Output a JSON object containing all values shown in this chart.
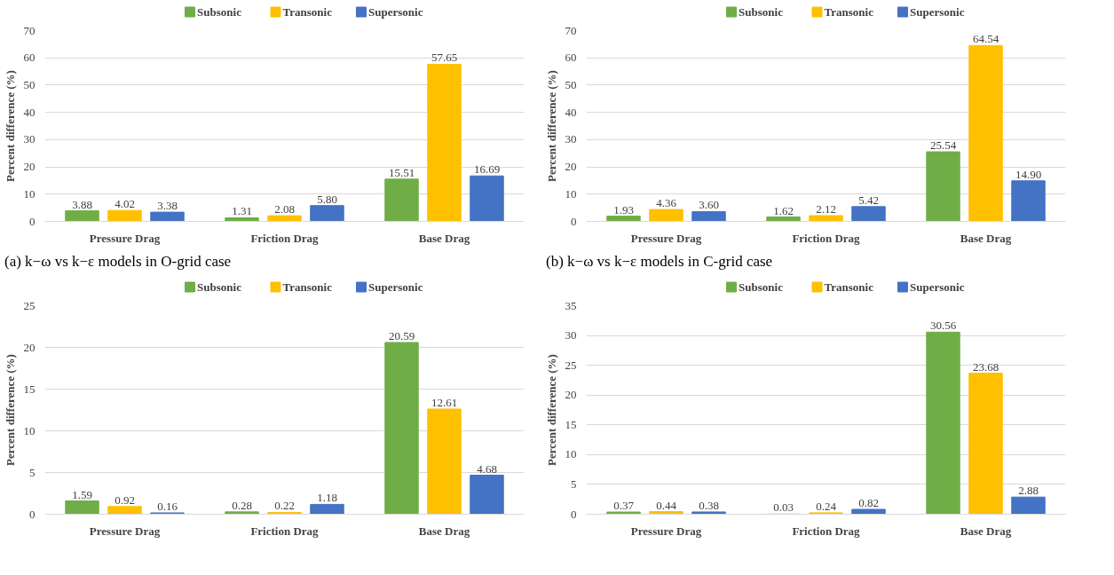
{
  "chart_data": [
    {
      "type": "bar",
      "categories": [
        "Pressure Drag",
        "Friction Drag",
        "Base Drag"
      ],
      "ylabel": "Percent difference (%)",
      "ylim": [
        0,
        70
      ],
      "yticks": [
        0,
        10,
        20,
        30,
        40,
        50,
        60,
        70
      ],
      "grid": "y",
      "legend": "top",
      "annotations": [
        "(a) k−ω vs k−ε models in O-grid case"
      ],
      "series": [
        {
          "name": "Subsonic",
          "color": "#70ad47",
          "values": [
            3.88,
            1.31,
            15.51
          ],
          "value_labels": [
            "3.88",
            "1.31",
            "15.51"
          ]
        },
        {
          "name": "Transonic",
          "color": "#ffc000",
          "values": [
            4.02,
            2.08,
            57.65
          ],
          "value_labels": [
            "4.02",
            "2.08",
            "57.65"
          ]
        },
        {
          "name": "Supersonic",
          "color": "#4472c4",
          "values": [
            3.38,
            5.8,
            16.69
          ],
          "value_labels": [
            "3.38",
            "5.80",
            "16.69"
          ]
        }
      ]
    },
    {
      "type": "bar",
      "categories": [
        "Pressure Drag",
        "Friction Drag",
        "Base Drag"
      ],
      "ylabel": "Percent difference (%)",
      "ylim": [
        0,
        70
      ],
      "yticks": [
        0,
        10,
        20,
        30,
        40,
        50,
        60,
        70
      ],
      "grid": "y",
      "legend": "top",
      "annotations": [
        "(b) k−ω vs k−ε models in C-grid case"
      ],
      "series": [
        {
          "name": "Subsonic",
          "color": "#70ad47",
          "values": [
            1.93,
            1.62,
            25.54
          ],
          "value_labels": [
            "1.93",
            "1.62",
            "25.54"
          ]
        },
        {
          "name": "Transonic",
          "color": "#ffc000",
          "values": [
            4.36,
            2.12,
            64.54
          ],
          "value_labels": [
            "4.36",
            "2.12",
            "64.54"
          ]
        },
        {
          "name": "Supersonic",
          "color": "#4472c4",
          "values": [
            3.6,
            5.42,
            14.9
          ],
          "value_labels": [
            "3.60",
            "5.42",
            "14.90"
          ]
        }
      ]
    },
    {
      "type": "bar",
      "categories": [
        "Pressure Drag",
        "Friction Drag",
        "Base Drag"
      ],
      "ylabel": "Percent difference (%)",
      "ylim": [
        0,
        25
      ],
      "yticks": [
        0,
        5,
        10,
        15,
        20,
        25
      ],
      "grid": "y",
      "legend": "top",
      "series": [
        {
          "name": "Subsonic",
          "color": "#70ad47",
          "values": [
            1.59,
            0.28,
            20.59
          ],
          "value_labels": [
            "1.59",
            "0.28",
            "20.59"
          ]
        },
        {
          "name": "Transonic",
          "color": "#ffc000",
          "values": [
            0.92,
            0.22,
            12.61
          ],
          "value_labels": [
            "0.92",
            "0.22",
            "12.61"
          ]
        },
        {
          "name": "Supersonic",
          "color": "#4472c4",
          "values": [
            0.16,
            1.18,
            4.68
          ],
          "value_labels": [
            "0.16",
            "1.18",
            "4.68"
          ]
        }
      ]
    },
    {
      "type": "bar",
      "categories": [
        "Pressure Drag",
        "Friction Drag",
        "Base Drag"
      ],
      "ylabel": "Percent difference (%)",
      "ylim": [
        0,
        35
      ],
      "yticks": [
        0,
        5,
        10,
        15,
        20,
        25,
        30,
        35
      ],
      "grid": "y",
      "legend": "top",
      "series": [
        {
          "name": "Subsonic",
          "color": "#70ad47",
          "values": [
            0.37,
            0.03,
            30.56
          ],
          "value_labels": [
            "0.37",
            "0.03",
            "30.56"
          ]
        },
        {
          "name": "Transonic",
          "color": "#ffc000",
          "values": [
            0.44,
            0.24,
            23.68
          ],
          "value_labels": [
            "0.44",
            "0.24",
            "23.68"
          ]
        },
        {
          "name": "Supersonic",
          "color": "#4472c4",
          "values": [
            0.38,
            0.82,
            2.88
          ],
          "value_labels": [
            "0.38",
            "0.82",
            "2.88"
          ]
        }
      ]
    }
  ]
}
